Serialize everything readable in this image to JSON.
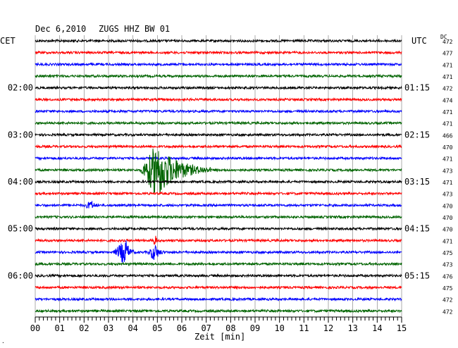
{
  "header": {
    "date": "Dec 6,2010",
    "station": "ZUGS HHZ BW 01",
    "left_zone": "CET",
    "right_zone": "UTC",
    "dc_label": "DC"
  },
  "footer": {
    "mark": "."
  },
  "chart_data": {
    "type": "line",
    "title": "Dec 6,2010   ZUGS HHZ BW 01",
    "xlabel": "Zeit [min]",
    "xlim": [
      0,
      15
    ],
    "x_ticks": [
      "00",
      "01",
      "02",
      "03",
      "04",
      "05",
      "06",
      "07",
      "08",
      "09",
      "10",
      "11",
      "12",
      "13",
      "14",
      "15"
    ],
    "trace_count": 24,
    "trace_colors": [
      "#000000",
      "#ff0000",
      "#0000ff",
      "#006400"
    ],
    "grid": true,
    "left_time_labels": [
      {
        "trace": 4,
        "text": "02:00"
      },
      {
        "trace": 8,
        "text": "03:00"
      },
      {
        "trace": 12,
        "text": "04:00"
      },
      {
        "trace": 16,
        "text": "05:00"
      },
      {
        "trace": 20,
        "text": "06:00"
      }
    ],
    "right_time_labels": [
      {
        "trace": 4,
        "text": "01:15"
      },
      {
        "trace": 8,
        "text": "02:15"
      },
      {
        "trace": 12,
        "text": "03:15"
      },
      {
        "trace": 16,
        "text": "04:15"
      },
      {
        "trace": 20,
        "text": "05:15"
      }
    ],
    "dc_offsets": [
      "472",
      "477",
      "471",
      "471",
      "472",
      "474",
      "471",
      "471",
      "466",
      "470",
      "471",
      "473",
      "471",
      "473",
      "470",
      "470",
      "470",
      "471",
      "475",
      "473",
      "476",
      "475",
      "472",
      "472"
    ],
    "events": [
      {
        "trace": 11,
        "start_min": 4.3,
        "peak_min": 5.0,
        "end_min": 7.2,
        "strength": 1.0
      },
      {
        "trace": 14,
        "start_min": 2.0,
        "peak_min": 2.3,
        "end_min": 2.6,
        "strength": 0.15
      },
      {
        "trace": 18,
        "start_min": 3.2,
        "peak_min": 3.7,
        "end_min": 4.1,
        "strength": 0.45
      },
      {
        "trace": 18,
        "start_min": 4.6,
        "peak_min": 4.9,
        "end_min": 5.3,
        "strength": 0.3
      },
      {
        "trace": 17,
        "start_min": 4.8,
        "peak_min": 4.9,
        "end_min": 5.05,
        "strength": 0.25
      }
    ]
  }
}
